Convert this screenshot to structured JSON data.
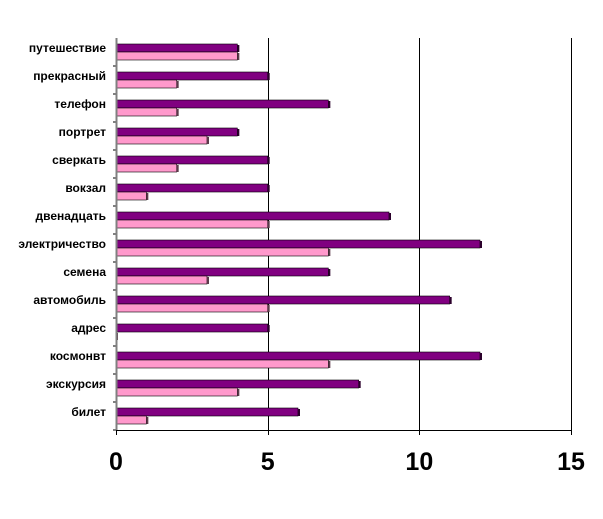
{
  "chart_data": {
    "type": "bar",
    "orientation": "horizontal",
    "title": "",
    "xlabel": "",
    "ylabel": "",
    "categories": [
      "путешествие",
      "прекрасный",
      "телефон",
      "портрет",
      "сверкать",
      "вокзал",
      "двенадцать",
      "электричество",
      "семена",
      "автомобиль",
      "адрес",
      "космонвт",
      "экскурсия",
      "билет"
    ],
    "series": [
      {
        "color": "#800080",
        "values": [
          4,
          5,
          7,
          4,
          5,
          5,
          9,
          12,
          7,
          11,
          5,
          12,
          8,
          6
        ]
      },
      {
        "color": "#ff99cc",
        "values": [
          4,
          2,
          2,
          3,
          2,
          1,
          5,
          7,
          3,
          5,
          0,
          7,
          4,
          1
        ]
      }
    ],
    "xlim": [
      0,
      15
    ],
    "xticks": [
      0,
      5,
      10,
      15
    ],
    "grid": "vertical major gridlines",
    "legend": "none"
  }
}
